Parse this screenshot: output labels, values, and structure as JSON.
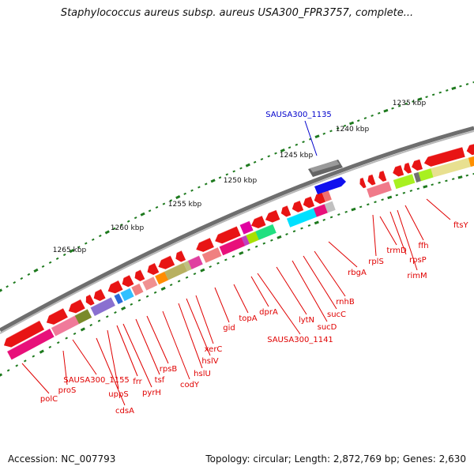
{
  "title": "Staphylococcus aureus subsp. aureus USA300_FPR3757, complete...",
  "accession": "Accession: NC_007793",
  "topology": "Topology: circular; Length: 2,872,769 bp; Genes: 2,630",
  "colors": {
    "backbone": "#6e6e6e",
    "tick_green": "#1e7a1e",
    "gene_label": "#e00000",
    "highlight_label": "#0000cc",
    "pointer_line": "#e00000"
  },
  "kbp_labels": [
    "1235 kbp",
    "1240 kbp",
    "1245 kbp",
    "1250 kbp",
    "1255 kbp",
    "1260 kbp",
    "1265 kbp"
  ],
  "highlight_gene": "SAUSA300_1135",
  "gene_labels": [
    "ftsY",
    "ffh",
    "rimM",
    "rpsP",
    "trmD",
    "rplS",
    "rbgA",
    "rnhB",
    "sucC",
    "sucD",
    "lytN",
    "SAUSA300_1141",
    "dprA",
    "topA",
    "gid",
    "xerC",
    "hslV",
    "hslU",
    "codY",
    "rpsB",
    "tsf",
    "pyrH",
    "frr",
    "uppS",
    "cdsA",
    "SAUSA300_1155",
    "proS",
    "polC"
  ]
}
